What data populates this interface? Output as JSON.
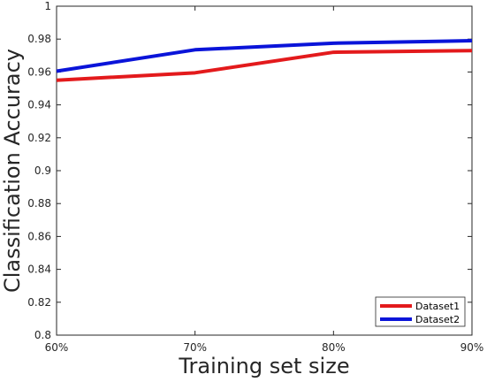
{
  "chart_data": {
    "type": "line",
    "title": "",
    "xlabel": "Training set size",
    "ylabel": "Classification Accuracy",
    "categories": [
      "60%",
      "70%",
      "80%",
      "90%"
    ],
    "ylim": [
      0.8,
      1.0
    ],
    "yticks": [
      0.8,
      0.82,
      0.84,
      0.86,
      0.88,
      0.9,
      0.92,
      0.94,
      0.96,
      0.98,
      1
    ],
    "ytick_labels": [
      "0.8",
      "0.82",
      "0.84",
      "0.86",
      "0.88",
      "0.9",
      "0.92",
      "0.94",
      "0.96",
      "0.98",
      "1"
    ],
    "grid": false,
    "legend_position": "bottom-right",
    "series": [
      {
        "name": "Dataset1",
        "color": "#e31a1c",
        "values": [
          0.955,
          0.9595,
          0.972,
          0.973
        ]
      },
      {
        "name": "Dataset2",
        "color": "#0a14d9",
        "values": [
          0.9605,
          0.9735,
          0.9775,
          0.979
        ]
      }
    ]
  }
}
